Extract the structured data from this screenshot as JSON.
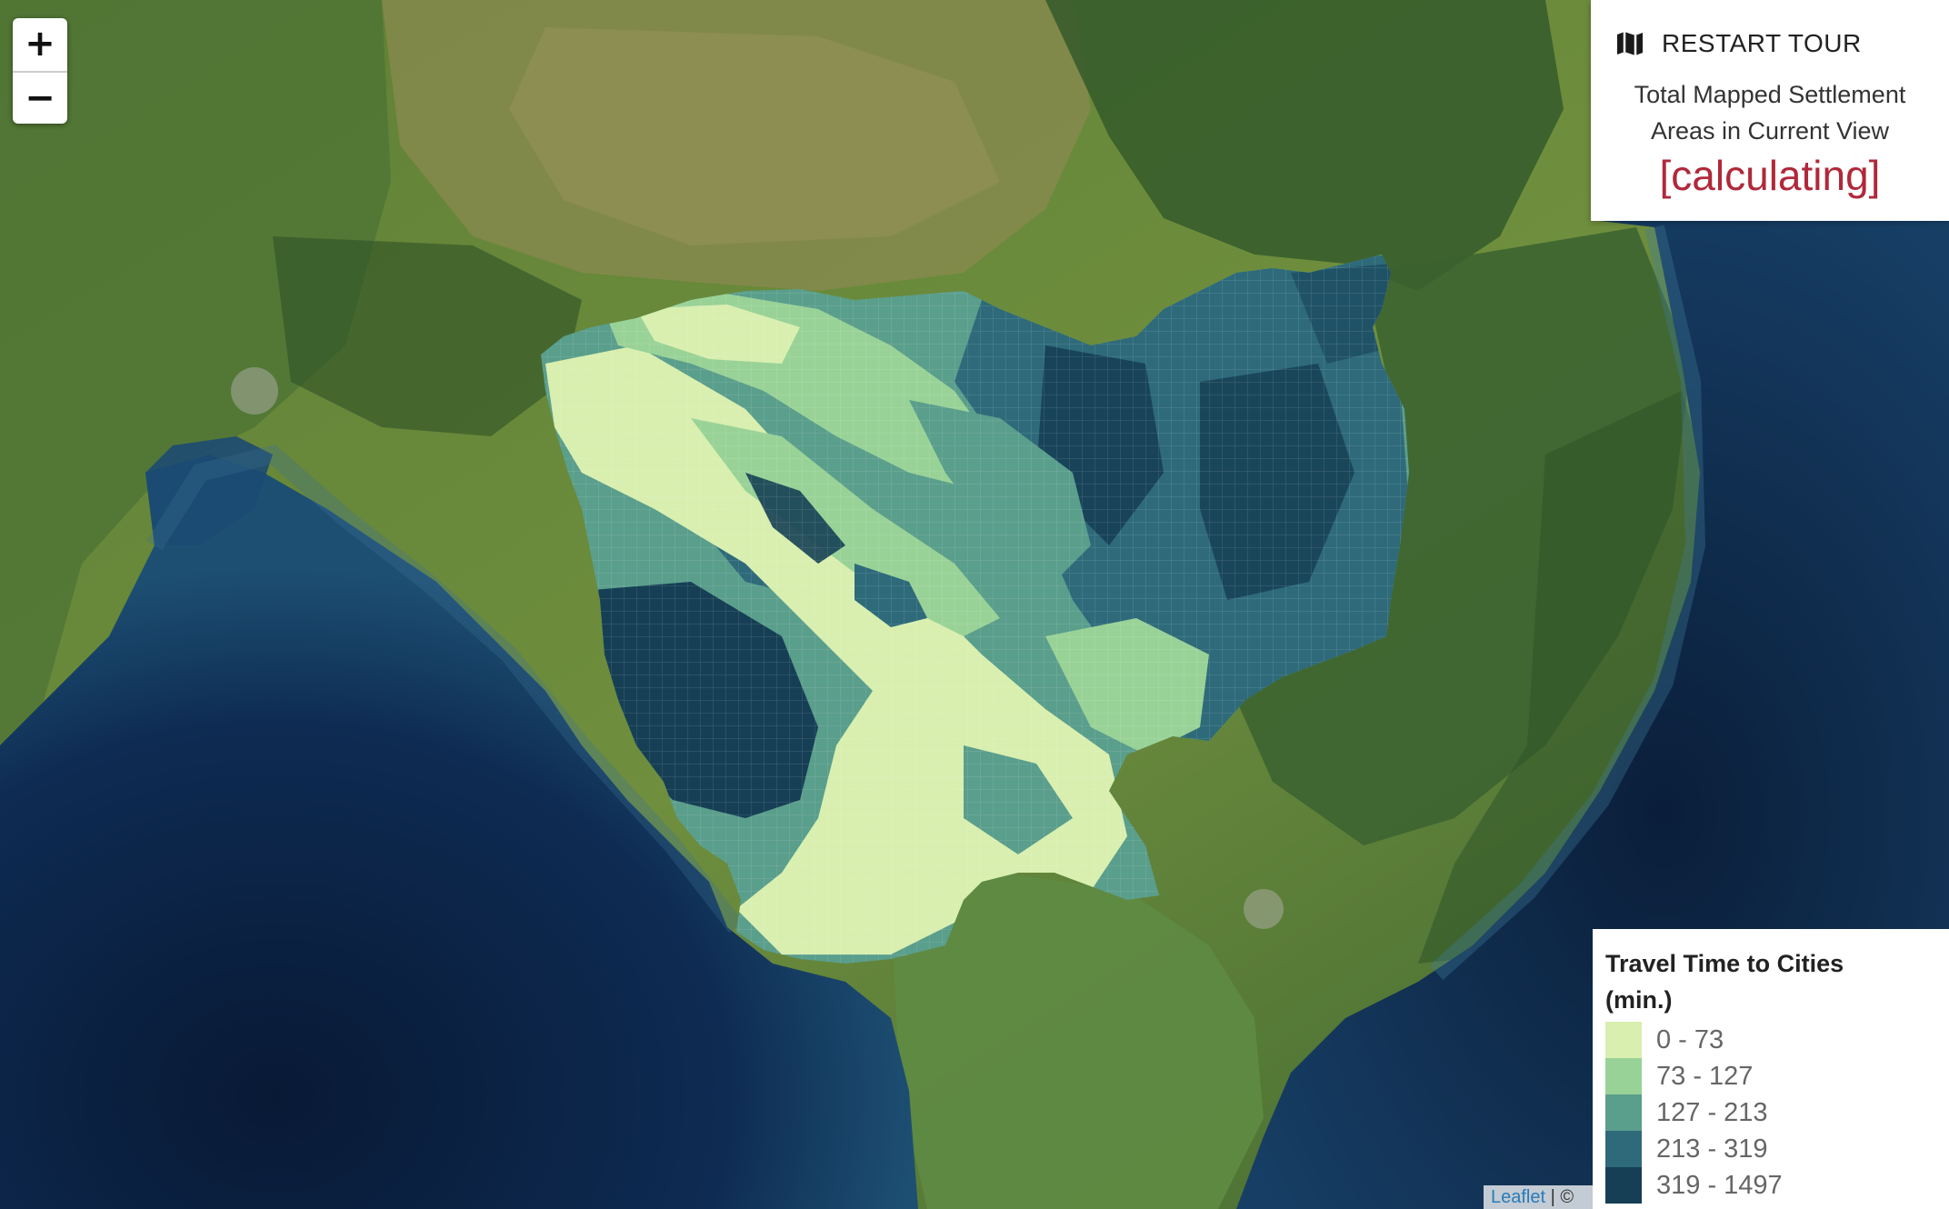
{
  "map": {
    "zoom_in_label": "+",
    "zoom_out_label": "−",
    "colors": {
      "ocean_deep": "#0b1f3d",
      "ocean_shallow": "#1f4f7d",
      "land_light": "#6f8f3e",
      "land_dark": "#2f5328",
      "land_arid": "#8d8a4e"
    }
  },
  "info_panel": {
    "tour_icon": "map-icon",
    "tour_label": "RESTART TOUR",
    "title_line1": "Total Mapped Settlement",
    "title_line2": "Areas in Current View",
    "value": "[calculating]",
    "value_color": "#b0283a"
  },
  "legend": {
    "title": "Travel Time to Cities (min.)",
    "items": [
      {
        "label": "0 - 73",
        "color": "#d8efaf"
      },
      {
        "label": "73 - 127",
        "color": "#99d297"
      },
      {
        "label": "127 - 213",
        "color": "#5a9e8c"
      },
      {
        "label": "213 - 319",
        "color": "#2e6a7a"
      },
      {
        "label": "319 - 1497",
        "color": "#163f55"
      }
    ]
  },
  "attribution": {
    "link_label": "Leaflet",
    "separator": "| ©"
  }
}
